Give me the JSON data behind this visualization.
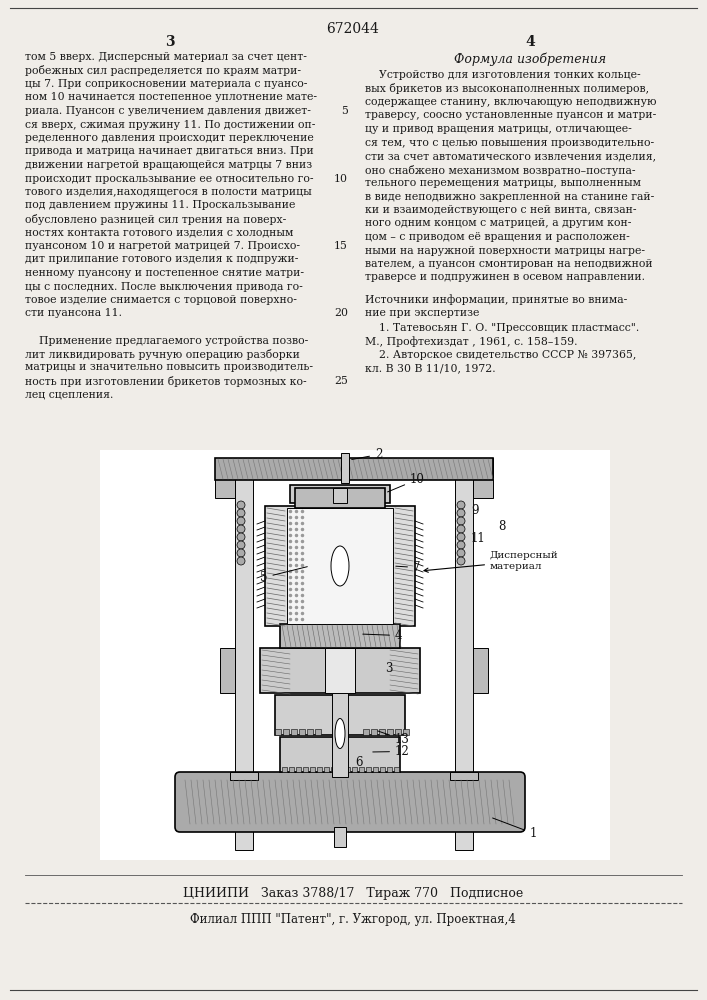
{
  "patent_number": "672044",
  "page_left": "3",
  "page_right": "4",
  "section_title": "Формула изобретения",
  "left_col": [
    "том 5 вверх. Дисперсный материал за счет цент-",
    "робежных сил распределяется по краям матри-",
    "цы 7. При соприкосновении материала с пуансо-",
    "ном 10 начинается постепенное уплотнение мате-",
    "риала. Пуансон с увеличением давления движет-",
    "ся вверх, сжимая пружину 11. По достижении оп-",
    "ределенного давления происходит переключение",
    "привода и матрица начинает двигаться вниз. При",
    "движении нагретой вращающейся матрцы 7 вниз",
    "происходит проскальзывание ее относительно го-",
    "тового изделия,находящегося в полости матрицы",
    "под давлением пружины 11. Проскальзывание",
    "обусловлено разницей сил трения на поверх-",
    "ностях контакта готового изделия с холодным",
    "пуансоном 10 и нагретой матрицей 7. Происхо-",
    "дит прилипание готового изделия к подпружи-",
    "ненному пуансону и постепенное снятие матри-",
    "цы с последних. После выключения привода го-",
    "товое изделие снимается с торцовой поверхно-",
    "сти пуансона 11.",
    "",
    "    Применение предлагаемого устройства позво-",
    "лит ликвидировать ручную операцию разборки",
    "матрицы и значительно повысить производитель-",
    "ность при изготовлении брикетов тормозных ко-",
    "лец сцепления."
  ],
  "right_col_formula": [
    "    Устройство для изготовления тонких кольце-",
    "вых брикетов из высоконаполненных полимеров,",
    "содержащее станину, включающую неподвижную",
    "траверсу, соосно установленные пуансон и матри-",
    "цу и привод вращения матрицы, отличающее-",
    "ся тем, что с целью повышения производительно-",
    "сти за счет автоматического извлечения изделия,",
    "оно снабжено механизмом возвратно–поступа-",
    "тельного перемещения матрицы, выполненным",
    "в виде неподвижно закрепленной на станине гай-",
    "ки и взаимодействующего с ней винта, связан-",
    "ного одним концом с матрицей, а другим кон-",
    "цом – с приводом её вращения и расположен-",
    "ными на наружной поверхности матрицы нагре-",
    "вателем, а пуансон смонтирован на неподвижной",
    "траверсе и подпружинен в осевом направлении."
  ],
  "right_col_sources_head": "Источники информации, принятые во внима-",
  "right_col_sources_head2": "ние при экспертизе",
  "right_col_sources": [
    "    1. Татевосьян Г. О. \"Прессовщик пластмасс\".",
    "М., Профтехиздат , 1961, с. 158–159.",
    "    2. Авторское свидетельство СССР № 397365,",
    "кл. В 30 В 11/10, 1972."
  ],
  "line_numbers_left": [
    "5",
    "10",
    "15",
    "20",
    "25"
  ],
  "footer1": "ЦНИИПИ   Заказ 3788/17   Тираж 770   Подписное",
  "footer2": "Филиал ППП \"Патент\", г. Ужгород, ул. Проектная,4",
  "bg_color": "#f0ede8",
  "text_color": "#1a1a1a"
}
